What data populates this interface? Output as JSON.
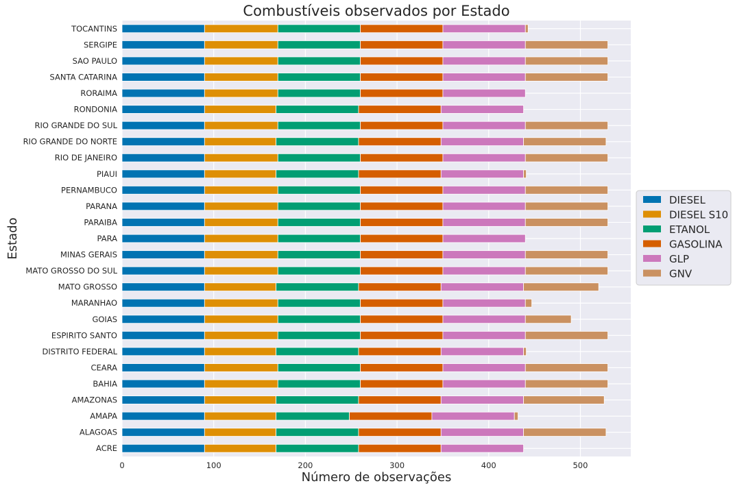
{
  "chart_data": {
    "type": "bar",
    "orientation": "horizontal",
    "stacked": true,
    "title": "Combustíveis observados por Estado",
    "xlabel": "Número de observações",
    "ylabel": "Estado",
    "xlim": [
      0,
      555
    ],
    "xticks": [
      0,
      100,
      200,
      300,
      400,
      500
    ],
    "grid": true,
    "legend_position": "right",
    "categories": [
      "ACRE",
      "ALAGOAS",
      "AMAPA",
      "AMAZONAS",
      "BAHIA",
      "CEARA",
      "DISTRITO FEDERAL",
      "ESPIRITO SANTO",
      "GOIAS",
      "MARANHAO",
      "MATO GROSSO",
      "MATO GROSSO DO SUL",
      "MINAS GERAIS",
      "PARA",
      "PARAIBA",
      "PARANA",
      "PERNAMBUCO",
      "PIAUI",
      "RIO DE JANEIRO",
      "RIO GRANDE DO NORTE",
      "RIO GRANDE DO SUL",
      "RONDONIA",
      "RORAIMA",
      "SANTA CATARINA",
      "SAO PAULO",
      "SERGIPE",
      "TOCANTINS"
    ],
    "series": [
      {
        "name": "DIESEL",
        "color": "#0173b2",
        "values": [
          90,
          90,
          90,
          90,
          90,
          90,
          90,
          90,
          90,
          90,
          90,
          90,
          90,
          90,
          90,
          90,
          90,
          90,
          90,
          90,
          90,
          90,
          90,
          90,
          90,
          90,
          90
        ]
      },
      {
        "name": "DIESEL S10",
        "color": "#de8f05",
        "values": [
          78,
          78,
          78,
          78,
          80,
          80,
          78,
          80,
          80,
          80,
          78,
          80,
          80,
          80,
          80,
          80,
          80,
          78,
          80,
          78,
          80,
          78,
          80,
          80,
          80,
          80,
          80
        ]
      },
      {
        "name": "ETANOL",
        "color": "#029e73",
        "values": [
          90,
          90,
          80,
          90,
          90,
          90,
          90,
          90,
          90,
          90,
          90,
          90,
          90,
          90,
          90,
          90,
          90,
          90,
          90,
          90,
          90,
          90,
          90,
          90,
          90,
          90,
          90
        ]
      },
      {
        "name": "GASOLINA",
        "color": "#d55e00",
        "values": [
          90,
          90,
          90,
          90,
          90,
          90,
          90,
          90,
          90,
          90,
          90,
          90,
          90,
          90,
          90,
          90,
          90,
          90,
          90,
          90,
          90,
          90,
          90,
          90,
          90,
          90,
          90
        ]
      },
      {
        "name": "GLP",
        "color": "#cc78bc",
        "values": [
          90,
          90,
          90,
          90,
          90,
          90,
          90,
          90,
          90,
          90,
          90,
          90,
          90,
          90,
          90,
          90,
          90,
          90,
          90,
          90,
          90,
          90,
          90,
          90,
          90,
          90,
          90
        ]
      },
      {
        "name": "GNV",
        "color": "#ca9161",
        "values": [
          0,
          90,
          4,
          88,
          90,
          90,
          3,
          90,
          50,
          7,
          82,
          90,
          90,
          0,
          90,
          90,
          90,
          3,
          90,
          90,
          90,
          0,
          0,
          90,
          90,
          90,
          3
        ]
      }
    ]
  }
}
